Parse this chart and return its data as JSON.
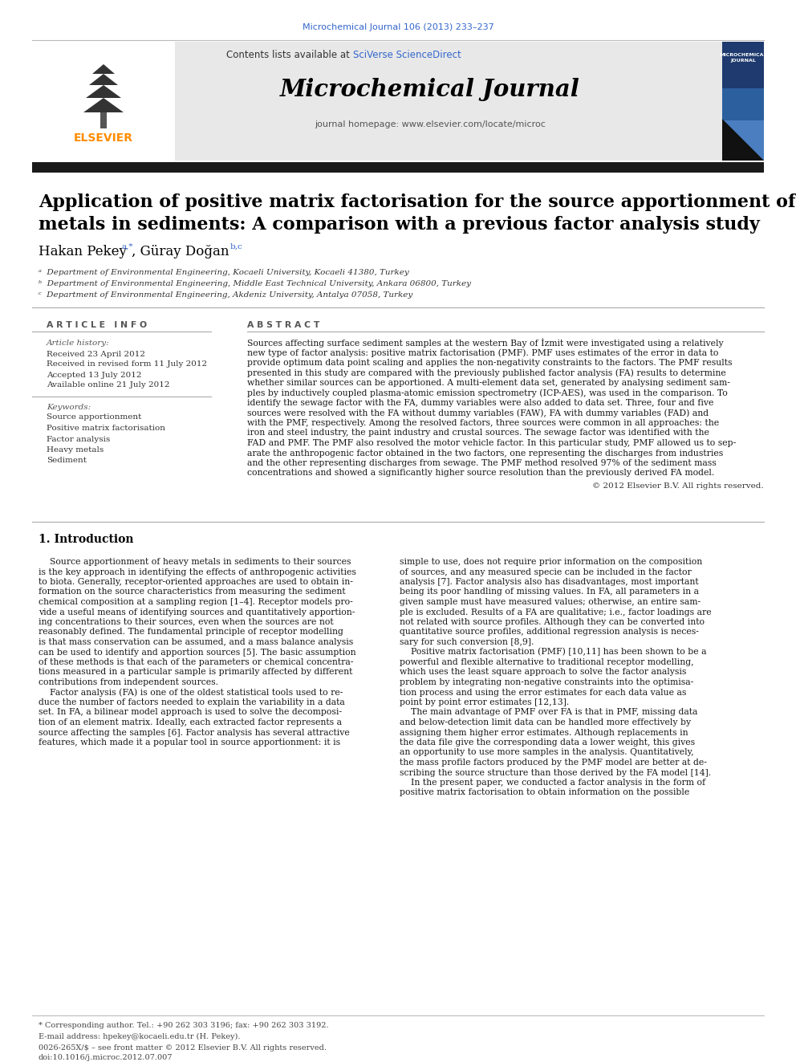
{
  "page_bg": "#ffffff",
  "top_citation": "Microchemical Journal 106 (2013) 233–237",
  "top_citation_color": "#3366cc",
  "header_bg": "#e8e8e8",
  "contents_text": "Contents lists available at ",
  "sciverse_text": "SciVerse ScienceDirect",
  "sciverse_color": "#3366cc",
  "journal_name": "Microchemical Journal",
  "journal_homepage": "journal homepage: www.elsevier.com/locate/microc",
  "thick_bar_color": "#1a1a1a",
  "article_title_line1": "Application of positive matrix factorisation for the source apportionment of heavy",
  "article_title_line2": "metals in sediments: A comparison with a previous factor analysis study",
  "author1_name": "Hakan Pekey ",
  "author1_sup": "a,*",
  "author2_name": ", Güray Doğan ",
  "author2_sup": "b,c",
  "affil_a": "ᵃ  Department of Environmental Engineering, Kocaeli University, Kocaeli 41380, Turkey",
  "affil_b": "ᵇ  Department of Environmental Engineering, Middle East Technical University, Ankara 06800, Turkey",
  "affil_c": "ᶜ  Department of Environmental Engineering, Akdeniz University, Antalya 07058, Turkey",
  "article_info_header": "A R T I C L E   I N F O",
  "abstract_header": "A B S T R A C T",
  "article_history_label": "Article history:",
  "received": "Received 23 April 2012",
  "revised": "Received in revised form 11 July 2012",
  "accepted": "Accepted 13 July 2012",
  "online": "Available online 21 July 2012",
  "keywords_label": "Keywords:",
  "keywords": [
    "Source apportionment",
    "Positive matrix factorisation",
    "Factor analysis",
    "Heavy metals",
    "Sediment"
  ],
  "abstract_lines": [
    "Sources affecting surface sediment samples at the western Bay of İzmit were investigated using a relatively",
    "new type of factor analysis: positive matrix factorisation (PMF). PMF uses estimates of the error in data to",
    "provide optimum data point scaling and applies the non-negativity constraints to the factors. The PMF results",
    "presented in this study are compared with the previously published factor analysis (FA) results to determine",
    "whether similar sources can be apportioned. A multi-element data set, generated by analysing sediment sam-",
    "ples by inductively coupled plasma-atomic emission spectrometry (ICP-AES), was used in the comparison. To",
    "identify the sewage factor with the FA, dummy variables were also added to data set. Three, four and five",
    "sources were resolved with the FA without dummy variables (FAW), FA with dummy variables (FAD) and",
    "with the PMF, respectively. Among the resolved factors, three sources were common in all approaches: the",
    "iron and steel industry, the paint industry and crustal sources. The sewage factor was identified with the",
    "FAD and PMF. The PMF also resolved the motor vehicle factor. In this particular study, PMF allowed us to sep-",
    "arate the anthropogenic factor obtained in the two factors, one representing the discharges from industries",
    "and the other representing discharges from sewage. The PMF method resolved 97% of the sediment mass",
    "concentrations and showed a significantly higher source resolution than the previously derived FA model."
  ],
  "copyright": "© 2012 Elsevier B.V. All rights reserved.",
  "intro_header": "1. Introduction",
  "intro_col1_lines": [
    "    Source apportionment of heavy metals in sediments to their sources",
    "is the key approach in identifying the effects of anthropogenic activities",
    "to biota. Generally, receptor-oriented approaches are used to obtain in-",
    "formation on the source characteristics from measuring the sediment",
    "chemical composition at a sampling region [1–4]. Receptor models pro-",
    "vide a useful means of identifying sources and quantitatively apportion-",
    "ing concentrations to their sources, even when the sources are not",
    "reasonably defined. The fundamental principle of receptor modelling",
    "is that mass conservation can be assumed, and a mass balance analysis",
    "can be used to identify and apportion sources [5]. The basic assumption",
    "of these methods is that each of the parameters or chemical concentra-",
    "tions measured in a particular sample is primarily affected by different",
    "contributions from independent sources.",
    "    Factor analysis (FA) is one of the oldest statistical tools used to re-",
    "duce the number of factors needed to explain the variability in a data",
    "set. In FA, a bilinear model approach is used to solve the decomposi-",
    "tion of an element matrix. Ideally, each extracted factor represents a",
    "source affecting the samples [6]. Factor analysis has several attractive",
    "features, which made it a popular tool in source apportionment: it is"
  ],
  "intro_col2_lines": [
    "simple to use, does not require prior information on the composition",
    "of sources, and any measured specie can be included in the factor",
    "analysis [7]. Factor analysis also has disadvantages, most important",
    "being its poor handling of missing values. In FA, all parameters in a",
    "given sample must have measured values; otherwise, an entire sam-",
    "ple is excluded. Results of a FA are qualitative; i.e., factor loadings are",
    "not related with source profiles. Although they can be converted into",
    "quantitative source profiles, additional regression analysis is neces-",
    "sary for such conversion [8,9].",
    "    Positive matrix factorisation (PMF) [10,11] has been shown to be a",
    "powerful and flexible alternative to traditional receptor modelling,",
    "which uses the least square approach to solve the factor analysis",
    "problem by integrating non-negative constraints into the optimisa-",
    "tion process and using the error estimates for each data value as",
    "point by point error estimates [12,13].",
    "    The main advantage of PMF over FA is that in PMF, missing data",
    "and below-detection limit data can be handled more effectively by",
    "assigning them higher error estimates. Although replacements in",
    "the data file give the corresponding data a lower weight, this gives",
    "an opportunity to use more samples in the analysis. Quantitatively,",
    "the mass profile factors produced by the PMF model are better at de-",
    "scribing the source structure than those derived by the FA model [14].",
    "    In the present paper, we conducted a factor analysis in the form of",
    "positive matrix factorisation to obtain information on the possible"
  ],
  "footer_text1": "* Corresponding author. Tel.: +90 262 303 3196; fax: +90 262 303 3192.",
  "footer_text2": "E-mail address: hpekey@kocaeli.edu.tr (H. Pekey).",
  "footer_issn": "0026-265X/$ – see front matter © 2012 Elsevier B.V. All rights reserved.",
  "footer_doi": "doi:10.1016/j.microc.2012.07.007"
}
